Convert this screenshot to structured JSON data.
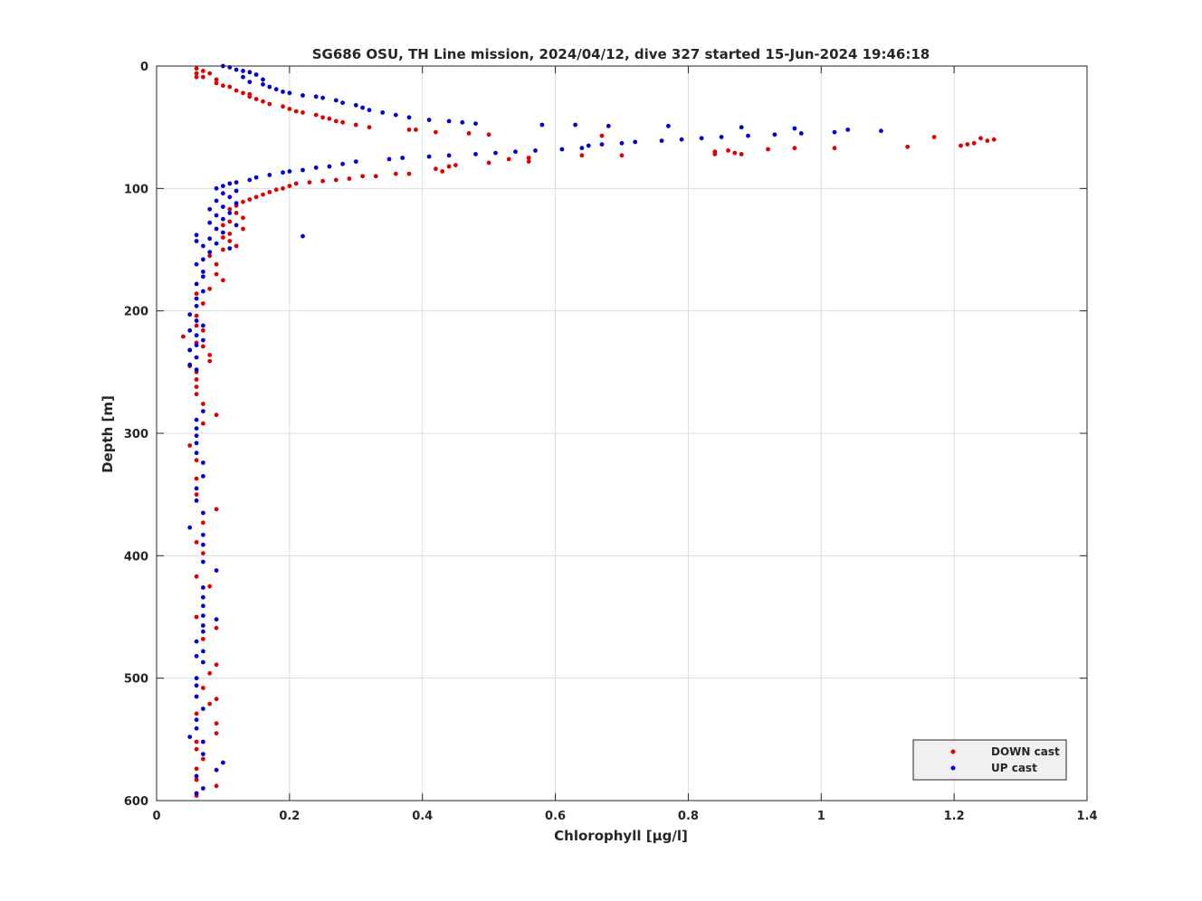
{
  "chart_data": {
    "type": "scatter",
    "title": "SG686 OSU, TH Line mission, 2024/04/12, dive 327 started 15-Jun-2024 19:46:18",
    "xlabel": "Chlorophyll [μg/l]",
    "ylabel": "Depth [m]",
    "xlim": [
      0,
      1.4
    ],
    "ylim": [
      0,
      600
    ],
    "y_reversed": true,
    "grid": true,
    "legend_placement": "bottom-right",
    "xticks": [
      "0",
      "0.2",
      "0.4",
      "0.6",
      "0.8",
      "1",
      "1.2",
      "1.4"
    ],
    "yticks": [
      "0",
      "100",
      "200",
      "300",
      "400",
      "500",
      "600"
    ],
    "series": [
      {
        "name": "DOWN cast",
        "color": "#e00000",
        "points": [
          [
            0.06,
            2
          ],
          [
            0.07,
            4
          ],
          [
            0.06,
            6
          ],
          [
            0.08,
            6
          ],
          [
            0.06,
            9
          ],
          [
            0.07,
            9
          ],
          [
            0.09,
            11
          ],
          [
            0.09,
            14
          ],
          [
            0.1,
            16
          ],
          [
            0.11,
            17
          ],
          [
            0.12,
            20
          ],
          [
            0.13,
            22
          ],
          [
            0.14,
            23
          ],
          [
            0.14,
            25
          ],
          [
            0.15,
            27
          ],
          [
            0.16,
            29
          ],
          [
            0.17,
            31
          ],
          [
            0.19,
            33
          ],
          [
            0.2,
            35
          ],
          [
            0.21,
            37
          ],
          [
            0.22,
            38
          ],
          [
            0.24,
            40
          ],
          [
            0.25,
            42
          ],
          [
            0.26,
            43
          ],
          [
            0.27,
            45
          ],
          [
            0.28,
            46
          ],
          [
            0.3,
            48
          ],
          [
            0.32,
            50
          ],
          [
            0.38,
            52
          ],
          [
            0.39,
            52
          ],
          [
            0.42,
            54
          ],
          [
            0.47,
            55
          ],
          [
            0.5,
            56
          ],
          [
            0.67,
            57
          ],
          [
            1.17,
            58
          ],
          [
            1.24,
            59
          ],
          [
            1.26,
            60
          ],
          [
            1.25,
            61
          ],
          [
            1.23,
            63
          ],
          [
            1.22,
            64
          ],
          [
            1.21,
            65
          ],
          [
            1.13,
            66
          ],
          [
            1.02,
            67
          ],
          [
            0.96,
            67
          ],
          [
            0.92,
            68
          ],
          [
            0.86,
            69
          ],
          [
            0.84,
            70
          ],
          [
            0.87,
            71
          ],
          [
            0.84,
            72
          ],
          [
            0.88,
            72
          ],
          [
            0.64,
            73
          ],
          [
            0.7,
            73
          ],
          [
            0.56,
            75
          ],
          [
            0.53,
            76
          ],
          [
            0.56,
            78
          ],
          [
            0.5,
            79
          ],
          [
            0.45,
            81
          ],
          [
            0.44,
            82
          ],
          [
            0.42,
            84
          ],
          [
            0.43,
            86
          ],
          [
            0.38,
            88
          ],
          [
            0.36,
            88
          ],
          [
            0.33,
            90
          ],
          [
            0.31,
            90
          ],
          [
            0.29,
            92
          ],
          [
            0.27,
            93
          ],
          [
            0.25,
            94
          ],
          [
            0.23,
            95
          ],
          [
            0.21,
            96
          ],
          [
            0.2,
            98
          ],
          [
            0.19,
            100
          ],
          [
            0.18,
            101
          ],
          [
            0.17,
            103
          ],
          [
            0.16,
            105
          ],
          [
            0.15,
            107
          ],
          [
            0.14,
            109
          ],
          [
            0.13,
            111
          ],
          [
            0.12,
            114
          ],
          [
            0.11,
            117
          ],
          [
            0.12,
            120
          ],
          [
            0.13,
            124
          ],
          [
            0.11,
            127
          ],
          [
            0.1,
            130
          ],
          [
            0.13,
            133
          ],
          [
            0.11,
            137
          ],
          [
            0.1,
            140
          ],
          [
            0.11,
            143
          ],
          [
            0.12,
            147
          ],
          [
            0.1,
            150
          ],
          [
            0.08,
            155
          ],
          [
            0.09,
            162
          ],
          [
            0.09,
            170
          ],
          [
            0.1,
            175
          ],
          [
            0.08,
            182
          ],
          [
            0.06,
            186
          ],
          [
            0.07,
            194
          ],
          [
            0.06,
            204
          ],
          [
            0.06,
            212
          ],
          [
            0.07,
            216
          ],
          [
            0.04,
            221
          ],
          [
            0.06,
            226
          ],
          [
            0.07,
            229
          ],
          [
            0.05,
            232
          ],
          [
            0.08,
            236
          ],
          [
            0.08,
            241
          ],
          [
            0.05,
            245
          ],
          [
            0.06,
            250
          ],
          [
            0.06,
            256
          ],
          [
            0.06,
            262
          ],
          [
            0.06,
            268
          ],
          [
            0.07,
            276
          ],
          [
            0.09,
            285
          ],
          [
            0.07,
            292
          ],
          [
            0.05,
            310
          ],
          [
            0.06,
            322
          ],
          [
            0.06,
            337
          ],
          [
            0.06,
            350
          ],
          [
            0.09,
            362
          ],
          [
            0.07,
            373
          ],
          [
            0.06,
            389
          ],
          [
            0.07,
            398
          ],
          [
            0.06,
            417
          ],
          [
            0.08,
            425
          ],
          [
            0.06,
            450
          ],
          [
            0.09,
            459
          ],
          [
            0.07,
            468
          ],
          [
            0.09,
            489
          ],
          [
            0.08,
            496
          ],
          [
            0.07,
            508
          ],
          [
            0.09,
            517
          ],
          [
            0.08,
            521
          ],
          [
            0.06,
            529
          ],
          [
            0.09,
            537
          ],
          [
            0.09,
            545
          ],
          [
            0.06,
            552
          ],
          [
            0.06,
            558
          ],
          [
            0.07,
            566
          ],
          [
            0.06,
            574
          ],
          [
            0.06,
            583
          ],
          [
            0.09,
            588
          ],
          [
            0.06,
            596
          ]
        ]
      },
      {
        "name": "UP cast",
        "color": "#0000d8",
        "points": [
          [
            0.1,
            0
          ],
          [
            0.11,
            1
          ],
          [
            0.12,
            3
          ],
          [
            0.13,
            4
          ],
          [
            0.14,
            5
          ],
          [
            0.15,
            7
          ],
          [
            0.13,
            9
          ],
          [
            0.16,
            11
          ],
          [
            0.14,
            13
          ],
          [
            0.16,
            15
          ],
          [
            0.17,
            17
          ],
          [
            0.18,
            19
          ],
          [
            0.19,
            21
          ],
          [
            0.2,
            22
          ],
          [
            0.22,
            24
          ],
          [
            0.24,
            25
          ],
          [
            0.25,
            26
          ],
          [
            0.27,
            28
          ],
          [
            0.28,
            30
          ],
          [
            0.3,
            32
          ],
          [
            0.31,
            34
          ],
          [
            0.32,
            36
          ],
          [
            0.34,
            38
          ],
          [
            0.36,
            40
          ],
          [
            0.38,
            42
          ],
          [
            0.41,
            44
          ],
          [
            0.44,
            45
          ],
          [
            0.46,
            46
          ],
          [
            0.48,
            47
          ],
          [
            0.58,
            48
          ],
          [
            0.63,
            48
          ],
          [
            0.68,
            49
          ],
          [
            0.77,
            49
          ],
          [
            0.88,
            50
          ],
          [
            0.96,
            51
          ],
          [
            1.04,
            52
          ],
          [
            1.09,
            53
          ],
          [
            1.02,
            54
          ],
          [
            0.97,
            55
          ],
          [
            0.93,
            56
          ],
          [
            0.89,
            57
          ],
          [
            0.85,
            58
          ],
          [
            0.82,
            59
          ],
          [
            0.79,
            60
          ],
          [
            0.76,
            61
          ],
          [
            0.72,
            62
          ],
          [
            0.7,
            63
          ],
          [
            0.67,
            64
          ],
          [
            0.65,
            65
          ],
          [
            0.64,
            67
          ],
          [
            0.61,
            68
          ],
          [
            0.57,
            69
          ],
          [
            0.54,
            70
          ],
          [
            0.51,
            71
          ],
          [
            0.48,
            72
          ],
          [
            0.44,
            73
          ],
          [
            0.41,
            74
          ],
          [
            0.37,
            75
          ],
          [
            0.35,
            76
          ],
          [
            0.3,
            78
          ],
          [
            0.28,
            80
          ],
          [
            0.26,
            82
          ],
          [
            0.24,
            83
          ],
          [
            0.22,
            85
          ],
          [
            0.2,
            86
          ],
          [
            0.19,
            87
          ],
          [
            0.17,
            89
          ],
          [
            0.15,
            91
          ],
          [
            0.14,
            93
          ],
          [
            0.12,
            95
          ],
          [
            0.11,
            96
          ],
          [
            0.1,
            98
          ],
          [
            0.09,
            100
          ],
          [
            0.12,
            102
          ],
          [
            0.1,
            104
          ],
          [
            0.11,
            107
          ],
          [
            0.09,
            110
          ],
          [
            0.12,
            112
          ],
          [
            0.1,
            115
          ],
          [
            0.08,
            117
          ],
          [
            0.11,
            120
          ],
          [
            0.09,
            122
          ],
          [
            0.1,
            125
          ],
          [
            0.08,
            128
          ],
          [
            0.12,
            130
          ],
          [
            0.09,
            133
          ],
          [
            0.1,
            136
          ],
          [
            0.06,
            138
          ],
          [
            0.22,
            139
          ],
          [
            0.08,
            141
          ],
          [
            0.06,
            143
          ],
          [
            0.09,
            145
          ],
          [
            0.07,
            147
          ],
          [
            0.11,
            149
          ],
          [
            0.08,
            152
          ],
          [
            0.07,
            158
          ],
          [
            0.06,
            162
          ],
          [
            0.07,
            168
          ],
          [
            0.07,
            172
          ],
          [
            0.06,
            178
          ],
          [
            0.07,
            184
          ],
          [
            0.06,
            190
          ],
          [
            0.06,
            196
          ],
          [
            0.05,
            203
          ],
          [
            0.06,
            208
          ],
          [
            0.07,
            212
          ],
          [
            0.05,
            216
          ],
          [
            0.06,
            220
          ],
          [
            0.07,
            224
          ],
          [
            0.06,
            228
          ],
          [
            0.05,
            232
          ],
          [
            0.06,
            238
          ],
          [
            0.05,
            244
          ],
          [
            0.06,
            248
          ],
          [
            0.07,
            282
          ],
          [
            0.06,
            289
          ],
          [
            0.06,
            296
          ],
          [
            0.06,
            302
          ],
          [
            0.06,
            308
          ],
          [
            0.06,
            316
          ],
          [
            0.07,
            324
          ],
          [
            0.07,
            335
          ],
          [
            0.06,
            345
          ],
          [
            0.06,
            355
          ],
          [
            0.07,
            365
          ],
          [
            0.05,
            377
          ],
          [
            0.07,
            383
          ],
          [
            0.07,
            391
          ],
          [
            0.07,
            405
          ],
          [
            0.09,
            412
          ],
          [
            0.07,
            426
          ],
          [
            0.07,
            434
          ],
          [
            0.07,
            441
          ],
          [
            0.07,
            449
          ],
          [
            0.09,
            452
          ],
          [
            0.07,
            457
          ],
          [
            0.07,
            462
          ],
          [
            0.06,
            470
          ],
          [
            0.07,
            478
          ],
          [
            0.06,
            482
          ],
          [
            0.07,
            487
          ],
          [
            0.06,
            500
          ],
          [
            0.06,
            506
          ],
          [
            0.06,
            515
          ],
          [
            0.07,
            525
          ],
          [
            0.06,
            534
          ],
          [
            0.06,
            541
          ],
          [
            0.05,
            548
          ],
          [
            0.07,
            552
          ],
          [
            0.07,
            562
          ],
          [
            0.1,
            569
          ],
          [
            0.09,
            575
          ],
          [
            0.06,
            580
          ],
          [
            0.07,
            590
          ],
          [
            0.06,
            594
          ]
        ]
      }
    ]
  }
}
